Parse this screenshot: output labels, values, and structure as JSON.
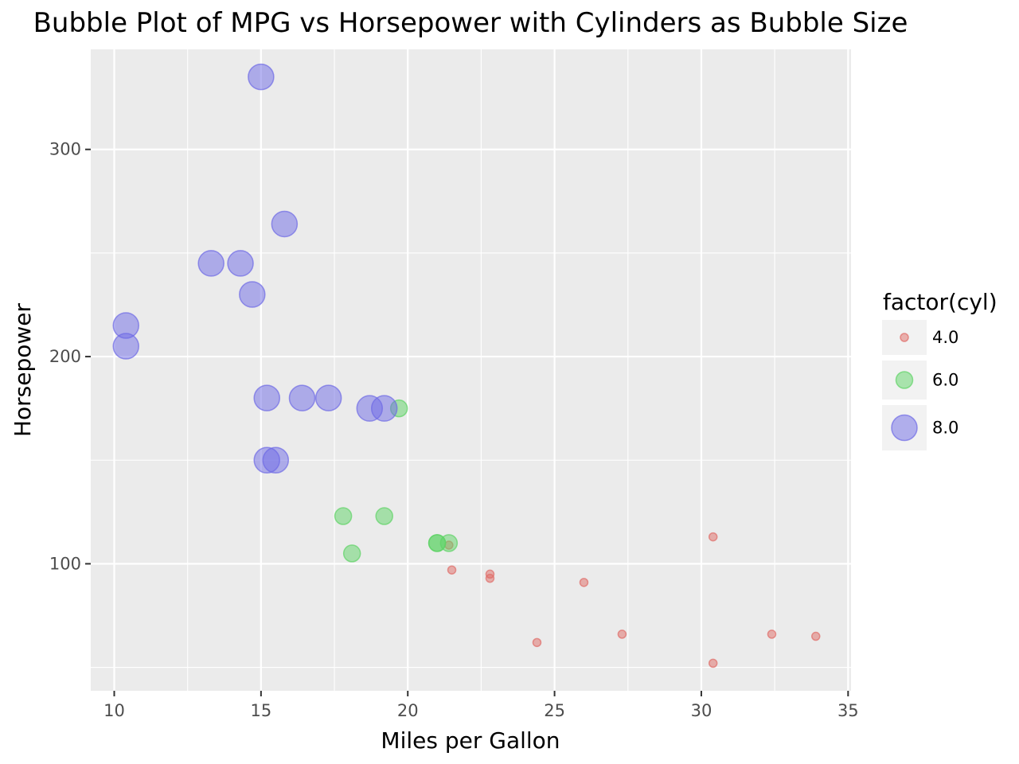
{
  "chart_data": {
    "type": "scatter",
    "title": "Bubble Plot of MPG vs Horsepower with Cylinders as Bubble Size",
    "xlabel": "Miles per Gallon",
    "ylabel": "Horsepower",
    "xlim": [
      9.2,
      35.1
    ],
    "ylim": [
      38.7,
      348.3
    ],
    "xticks": [
      10,
      15,
      20,
      25,
      30,
      35
    ],
    "yticks": [
      100,
      200,
      300
    ],
    "grid": true,
    "legend": {
      "title": "factor(cyl)",
      "placement": "right",
      "entries": [
        {
          "label": "4.0",
          "color": "#e06b66"
        },
        {
          "label": "6.0",
          "color": "#5ed365"
        },
        {
          "label": "8.0",
          "color": "#6e6ae6"
        }
      ]
    },
    "series": [
      {
        "name": "4.0",
        "color": "#e06b66",
        "points": [
          {
            "x": 22.8,
            "y": 93
          },
          {
            "x": 24.4,
            "y": 62
          },
          {
            "x": 22.8,
            "y": 95
          },
          {
            "x": 32.4,
            "y": 66
          },
          {
            "x": 30.4,
            "y": 52
          },
          {
            "x": 33.9,
            "y": 65
          },
          {
            "x": 21.5,
            "y": 97
          },
          {
            "x": 27.3,
            "y": 66
          },
          {
            "x": 26.0,
            "y": 91
          },
          {
            "x": 30.4,
            "y": 113
          },
          {
            "x": 21.4,
            "y": 109
          }
        ]
      },
      {
        "name": "6.0",
        "color": "#5ed365",
        "points": [
          {
            "x": 21.0,
            "y": 110
          },
          {
            "x": 21.0,
            "y": 110
          },
          {
            "x": 21.4,
            "y": 110
          },
          {
            "x": 18.1,
            "y": 105
          },
          {
            "x": 19.2,
            "y": 123
          },
          {
            "x": 17.8,
            "y": 123
          },
          {
            "x": 19.7,
            "y": 175
          }
        ]
      },
      {
        "name": "8.0",
        "color": "#6e6ae6",
        "points": [
          {
            "x": 18.7,
            "y": 175
          },
          {
            "x": 14.3,
            "y": 245
          },
          {
            "x": 16.4,
            "y": 180
          },
          {
            "x": 17.3,
            "y": 180
          },
          {
            "x": 15.2,
            "y": 180
          },
          {
            "x": 10.4,
            "y": 205
          },
          {
            "x": 10.4,
            "y": 215
          },
          {
            "x": 14.7,
            "y": 230
          },
          {
            "x": 15.5,
            "y": 150
          },
          {
            "x": 15.2,
            "y": 150
          },
          {
            "x": 13.3,
            "y": 245
          },
          {
            "x": 19.2,
            "y": 175
          },
          {
            "x": 15.8,
            "y": 264
          },
          {
            "x": 15.0,
            "y": 335
          }
        ]
      }
    ]
  }
}
